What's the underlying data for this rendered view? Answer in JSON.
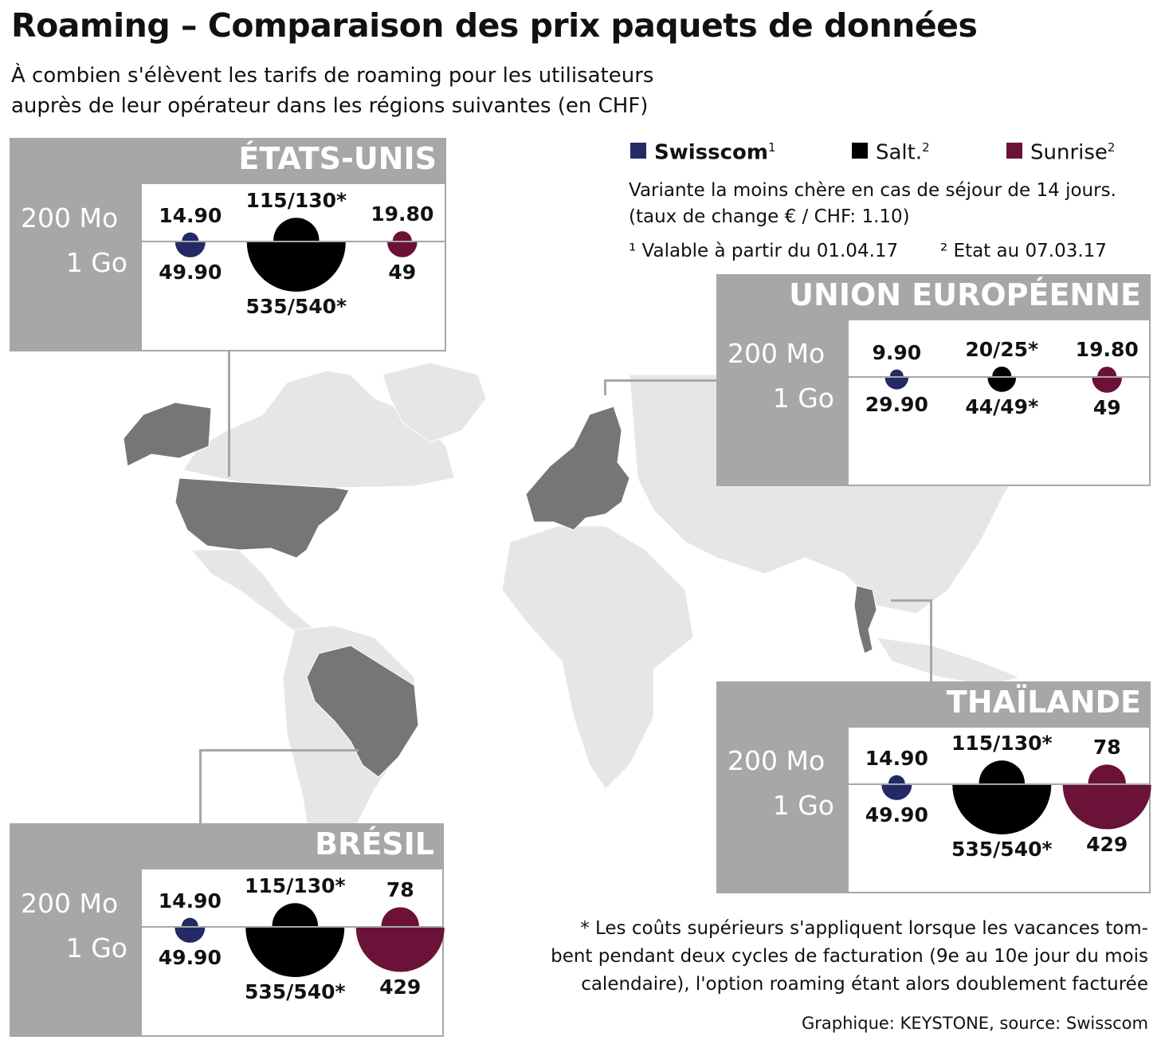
{
  "title": "Roaming – Comparaison des prix paquets de données",
  "subtitle_line1": "À combien s'élèvent les tarifs de roaming pour les utilisateurs",
  "subtitle_line2": "auprès de leur opérateur dans les régions suivantes (en CHF)",
  "legend": [
    {
      "name": "Swisscom",
      "sup": "1",
      "color": "#232a66"
    },
    {
      "name": "Salt.",
      "sup": "2",
      "color": "#000000"
    },
    {
      "name": "Sunrise",
      "sup": "2",
      "color": "#6b1238"
    }
  ],
  "notes": {
    "line1": "Variante la moins chère en cas de séjour de 14 jours.",
    "line2": "(taux de change € / CHF: 1.10)",
    "fn1": "¹ Valable à partir du 01.04.17",
    "fn2": "² Etat au 07.03.17"
  },
  "footnote": {
    "line1": "* Les coûts supérieurs s'appliquent lorsque les vacances tom-",
    "line2": "bent pendant deux cycles de facturation (9e au 10e jour du mois",
    "line3": "calendaire), l'option roaming étant alors doublement facturée"
  },
  "credit": "Graphique: KEYSTONE, source: Swisscom",
  "row_labels": {
    "small": "200 Mo",
    "large": "1 Go"
  },
  "chart_data": [
    {
      "type": "table",
      "region": "ÉTATS-UNIS",
      "rows": [
        "200 Mo",
        "1 Go"
      ],
      "series": [
        {
          "name": "Swisscom",
          "values": [
            14.9,
            49.9
          ],
          "labels": [
            "14.90",
            "49.90"
          ]
        },
        {
          "name": "Salt.",
          "values": [
            115,
            535
          ],
          "labels": [
            "115/130*",
            "535/540*"
          ]
        },
        {
          "name": "Sunrise",
          "values": [
            19.8,
            49
          ],
          "labels": [
            "19.80",
            "49"
          ]
        }
      ]
    },
    {
      "type": "table",
      "region": "UNION EUROPÉENNE",
      "rows": [
        "200 Mo",
        "1 Go"
      ],
      "series": [
        {
          "name": "Swisscom",
          "values": [
            9.9,
            29.9
          ],
          "labels": [
            "9.90",
            "29.90"
          ]
        },
        {
          "name": "Salt.",
          "values": [
            20,
            44
          ],
          "labels": [
            "20/25*",
            "44/49*"
          ]
        },
        {
          "name": "Sunrise",
          "values": [
            19.8,
            49
          ],
          "labels": [
            "19.80",
            "49"
          ]
        }
      ]
    },
    {
      "type": "table",
      "region": "THAÏLANDE",
      "rows": [
        "200 Mo",
        "1 Go"
      ],
      "series": [
        {
          "name": "Swisscom",
          "values": [
            14.9,
            49.9
          ],
          "labels": [
            "14.90",
            "49.90"
          ]
        },
        {
          "name": "Salt.",
          "values": [
            115,
            535
          ],
          "labels": [
            "115/130*",
            "535/540*"
          ]
        },
        {
          "name": "Sunrise",
          "values": [
            78,
            429
          ],
          "labels": [
            "78",
            "429"
          ]
        }
      ]
    },
    {
      "type": "table",
      "region": "BRÉSIL",
      "rows": [
        "200 Mo",
        "1 Go"
      ],
      "series": [
        {
          "name": "Swisscom",
          "values": [
            14.9,
            49.9
          ],
          "labels": [
            "14.90",
            "49.90"
          ]
        },
        {
          "name": "Salt.",
          "values": [
            115,
            535
          ],
          "labels": [
            "115/130*",
            "535/540*"
          ]
        },
        {
          "name": "Sunrise",
          "values": [
            78,
            429
          ],
          "labels": [
            "78",
            "429"
          ]
        }
      ]
    }
  ]
}
